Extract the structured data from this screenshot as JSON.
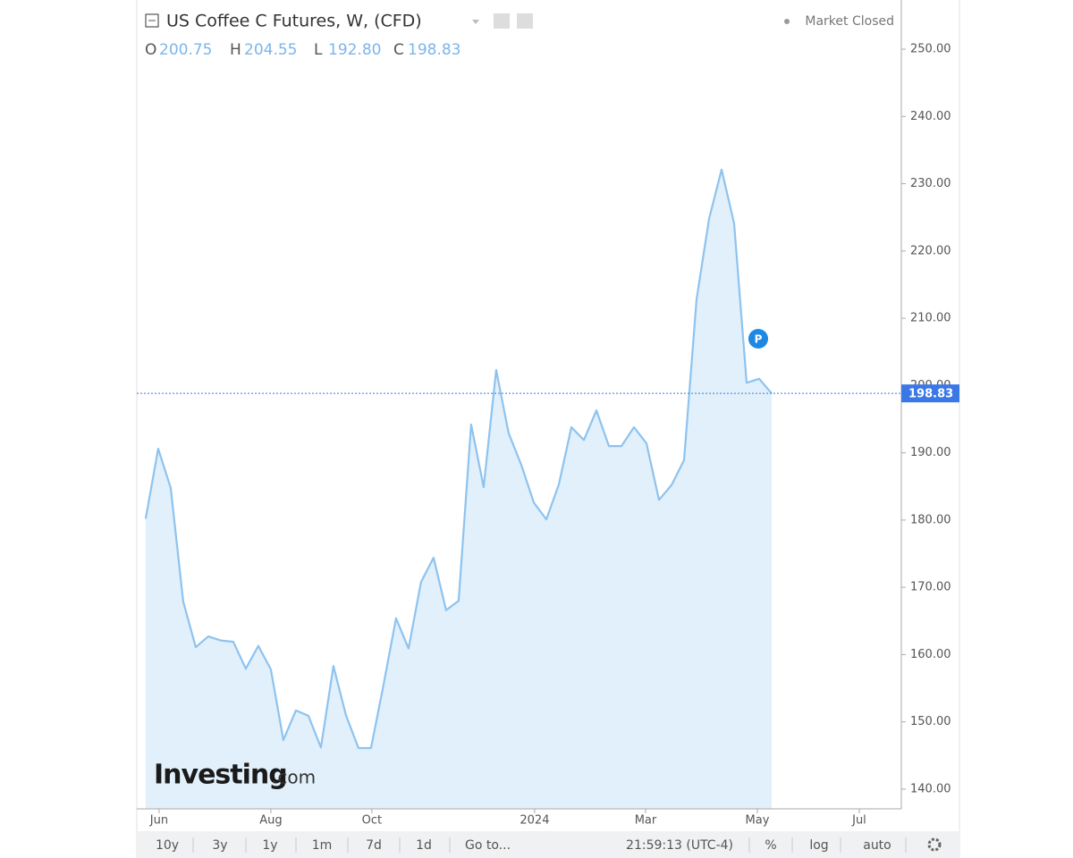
{
  "chart_data": {
    "type": "area",
    "title": "US Coffee C Futures, W, (CFD)",
    "values": [
      180.2,
      190.6,
      184.8,
      167.9,
      161.1,
      162.7,
      162.1,
      161.9,
      157.9,
      161.3,
      157.8,
      147.3,
      151.7,
      150.9,
      146.2,
      158.3,
      151.0,
      146.1,
      146.1,
      155.5,
      165.4,
      160.9,
      170.8,
      174.4,
      166.6,
      168.0,
      194.2,
      184.9,
      202.3,
      192.9,
      188.2,
      182.6,
      180.1,
      185.3,
      193.8,
      191.9,
      196.3,
      191.0,
      191.0,
      193.8,
      191.4,
      183.0,
      185.2,
      188.9,
      212.8,
      224.8,
      232.1,
      224.1,
      200.4,
      201.0,
      198.83
    ],
    "color": "#8ec3ef",
    "fill_color": "#e1f0fa",
    "xlim": [
      -0.71,
      60.36
    ],
    "xticks": [
      {
        "value": 1.07,
        "label": "Jun"
      },
      {
        "value": 10.0,
        "label": "Aug"
      },
      {
        "value": 18.07,
        "label": "Oct"
      },
      {
        "value": 31.07,
        "label": "2024"
      },
      {
        "value": 39.93,
        "label": "Mar"
      },
      {
        "value": 48.86,
        "label": "May"
      },
      {
        "value": 57.0,
        "label": "Jul"
      }
    ],
    "ylim": [
      137.07,
      257.31
    ],
    "yticks": [
      {
        "value": 140,
        "label": "140.00"
      },
      {
        "value": 150,
        "label": "150.00"
      },
      {
        "value": 160,
        "label": "160.00"
      },
      {
        "value": 170,
        "label": "170.00"
      },
      {
        "value": 180,
        "label": "180.00"
      },
      {
        "value": 190,
        "label": "190.00"
      },
      {
        "value": 200,
        "label": "200.00"
      },
      {
        "value": 210,
        "label": "210.00"
      },
      {
        "value": 220,
        "label": "220.00"
      },
      {
        "value": 230,
        "label": "230.00"
      },
      {
        "value": 240,
        "label": "240.00"
      },
      {
        "value": 250,
        "label": "250.00"
      }
    ],
    "last_price": 198.83,
    "last_price_color": "#3b78e7"
  },
  "header": {
    "ohlc": [
      {
        "key": "O",
        "value": "200.75"
      },
      {
        "key": "H",
        "value": "204.55"
      },
      {
        "key": "L",
        "value": "192.80"
      },
      {
        "key": "C",
        "value": "198.83"
      }
    ],
    "status": "Market Closed",
    "marker": "P"
  },
  "watermark": {
    "brand": "Investing",
    "suffix": ".com"
  },
  "toolbar": {
    "ranges": [
      "10y",
      "3y",
      "1y",
      "1m",
      "7d",
      "1d"
    ],
    "goto": "Go to...",
    "time": "21:59:13 (UTC-4)",
    "options": [
      "%",
      "log",
      "auto"
    ]
  }
}
